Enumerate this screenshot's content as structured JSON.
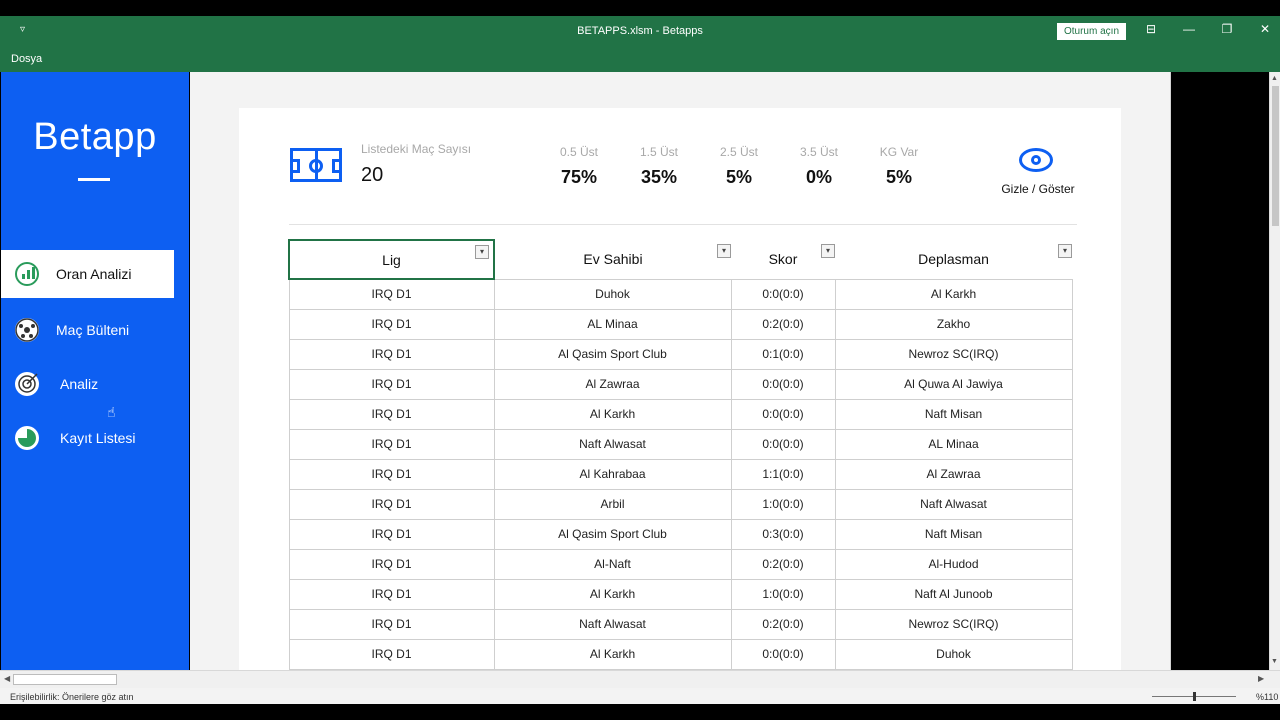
{
  "window": {
    "title": "BETAPPS.xlsm  -  Betapps",
    "signin_label": "Oturum açın",
    "quick_access": "▿"
  },
  "menu": {
    "file": "Dosya"
  },
  "sidebar": {
    "logo": "Betapp",
    "items": [
      {
        "label": "Oran Analizi",
        "icon": "bar-chart-icon",
        "active": true
      },
      {
        "label": "Maç Bülteni",
        "icon": "soccer-ball-icon"
      },
      {
        "label": "Analiz",
        "icon": "target-icon"
      },
      {
        "label": "Kayıt Listesi",
        "icon": "pie-chart-icon"
      }
    ]
  },
  "summary": {
    "count_label": "Listedeki Maç Sayısı",
    "count_value": "20",
    "stats": [
      {
        "label": "0.5 Üst",
        "value": "75%"
      },
      {
        "label": "1.5 Üst",
        "value": "35%"
      },
      {
        "label": "2.5 Üst",
        "value": "5%"
      },
      {
        "label": "3.5 Üst",
        "value": "0%"
      },
      {
        "label": "KG Var",
        "value": "5%"
      }
    ],
    "toggle_label": "Gizle / Göster"
  },
  "table": {
    "headers": [
      "Lig",
      "Ev Sahibi",
      "Skor",
      "Deplasman"
    ],
    "rows": [
      [
        "IRQ D1",
        "Duhok",
        "0:0(0:0)",
        "Al Karkh"
      ],
      [
        "IRQ D1",
        "AL Minaa",
        "0:2(0:0)",
        "Zakho"
      ],
      [
        "IRQ D1",
        "Al Qasim Sport Club",
        "0:1(0:0)",
        "Newroz SC(IRQ)"
      ],
      [
        "IRQ D1",
        "Al Zawraa",
        "0:0(0:0)",
        "Al Quwa Al Jawiya"
      ],
      [
        "IRQ D1",
        "Al Karkh",
        "0:0(0:0)",
        "Naft Misan"
      ],
      [
        "IRQ D1",
        "Naft Alwasat",
        "0:0(0:0)",
        "AL Minaa"
      ],
      [
        "IRQ D1",
        "Al Kahrabaa",
        "1:1(0:0)",
        "Al Zawraa"
      ],
      [
        "IRQ D1",
        "Arbil",
        "1:0(0:0)",
        "Naft Alwasat"
      ],
      [
        "IRQ D1",
        "Al Qasim Sport Club",
        "0:3(0:0)",
        "Naft Misan"
      ],
      [
        "IRQ D1",
        "Al-Naft",
        "0:2(0:0)",
        "Al-Hudod"
      ],
      [
        "IRQ D1",
        "Al Karkh",
        "1:0(0:0)",
        "Naft Al Junoob"
      ],
      [
        "IRQ D1",
        "Naft Alwasat",
        "0:2(0:0)",
        "Newroz SC(IRQ)"
      ],
      [
        "IRQ D1",
        "Al Karkh",
        "0:0(0:0)",
        "Duhok"
      ]
    ]
  },
  "status": {
    "accessibility": "Erişilebilirlik: Önerilere göz atın",
    "zoom": "%110"
  },
  "colors": {
    "excel_green": "#217346",
    "brand_blue": "#0d5ff2"
  }
}
